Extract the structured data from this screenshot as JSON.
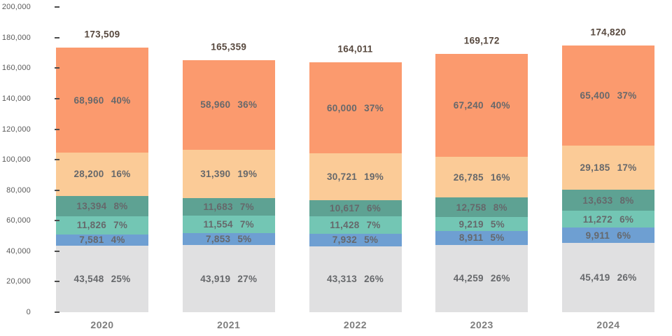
{
  "chart_data": {
    "type": "bar",
    "stacked": true,
    "title": "",
    "xlabel": "",
    "ylabel": "",
    "legend": "none",
    "grid": "off",
    "categories": [
      "2020",
      "2021",
      "2022",
      "2023",
      "2024"
    ],
    "totals": [
      173509,
      165359,
      164011,
      169172,
      174820
    ],
    "totals_fmt": [
      "173,509",
      "165,359",
      "164,011",
      "169,172",
      "174,820"
    ],
    "series": [
      {
        "name": "gray-base-segment",
        "color": "#E0E0E1",
        "values": [
          43548,
          43919,
          43313,
          44259,
          45419
        ],
        "values_fmt": [
          "43,548",
          "43,919",
          "43,313",
          "44,259",
          "45,419"
        ],
        "pcts": [
          "25%",
          "27%",
          "26%",
          "26%",
          "26%"
        ]
      },
      {
        "name": "blue-segment",
        "color": "#6E9FD2",
        "values": [
          7581,
          7853,
          7932,
          8911,
          9911
        ],
        "values_fmt": [
          "7,581",
          "7,853",
          "7,932",
          "8,911",
          "9,911"
        ],
        "pcts": [
          "4%",
          "5%",
          "5%",
          "5%",
          "6%"
        ]
      },
      {
        "name": "light-teal-segment",
        "color": "#73C6B4",
        "values": [
          11826,
          11554,
          11428,
          9219,
          11272
        ],
        "values_fmt": [
          "11,826",
          "11,554",
          "11,428",
          "9,219",
          "11,272"
        ],
        "pcts": [
          "7%",
          "7%",
          "7%",
          "5%",
          "6%"
        ]
      },
      {
        "name": "sea-green-segment",
        "color": "#5EA293",
        "values": [
          13394,
          11683,
          10617,
          12758,
          13633
        ],
        "values_fmt": [
          "13,394",
          "11,683",
          "10,617",
          "12,758",
          "13,633"
        ],
        "pcts": [
          "8%",
          "7%",
          "6%",
          "8%",
          "8%"
        ]
      },
      {
        "name": "peach-segment",
        "color": "#FBCB97",
        "values": [
          28200,
          31390,
          30721,
          26785,
          29185
        ],
        "values_fmt": [
          "28,200",
          "31,390",
          "30,721",
          "26,785",
          "29,185"
        ],
        "pcts": [
          "16%",
          "19%",
          "19%",
          "16%",
          "17%"
        ]
      },
      {
        "name": "orange-segment",
        "color": "#FB9A6E",
        "values": [
          68960,
          58960,
          60000,
          67240,
          65400
        ],
        "values_fmt": [
          "68,960",
          "58,960",
          "60,000",
          "67,240",
          "65,400"
        ],
        "pcts": [
          "40%",
          "36%",
          "37%",
          "40%",
          "37%"
        ]
      }
    ],
    "y_axis": {
      "min": 0,
      "max": 200000,
      "step": 20000,
      "ticks_fmt": [
        "0",
        "20,000",
        "40,000",
        "60,000",
        "80,000",
        "100,000",
        "120,000",
        "140,000",
        "160,000",
        "180,000",
        "200,000"
      ]
    },
    "colors": {
      "segment_label": "#66686B",
      "total_label": "#57483E",
      "year_label": "#7D7D7D",
      "axis_label": "#595959",
      "tick_mark": "#4B4B4B",
      "background": "#FFFFFF"
    }
  }
}
